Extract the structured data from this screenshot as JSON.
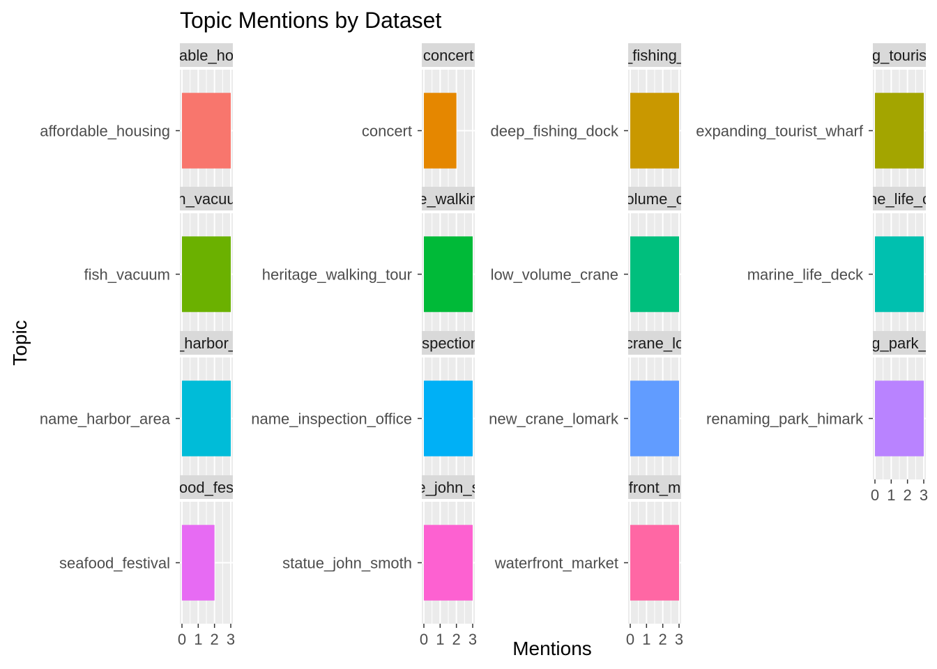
{
  "chart_data": {
    "type": "bar",
    "orientation": "horizontal",
    "facet_wrap": true,
    "title": "Topic Mentions by Dataset",
    "xlabel": "Mentions",
    "ylabel": "Topic",
    "xlim": [
      0,
      3
    ],
    "x_ticks": [
      "0",
      "1",
      "2",
      "3"
    ],
    "grid": true,
    "legend": "none",
    "panels": [
      {
        "strip": "able_ho",
        "topic": "affordable_housing",
        "value": 3,
        "color": "#F8766D"
      },
      {
        "strip": "concert",
        "topic": "concert",
        "value": 2,
        "color": "#E58700"
      },
      {
        "strip": "_fishing_",
        "topic": "deep_fishing_dock",
        "value": 3,
        "color": "#C99800"
      },
      {
        "strip": "g_touris",
        "topic": "expanding_tourist_wharf",
        "value": 3,
        "color": "#A3A500"
      },
      {
        "strip": "h_vacuu",
        "topic": "fish_vacuum",
        "value": 3,
        "color": "#6BB100"
      },
      {
        "strip": "e_walkin",
        "topic": "heritage_walking_tour",
        "value": 3,
        "color": "#00BA38"
      },
      {
        "strip": "olume_c",
        "topic": "low_volume_crane",
        "value": 3,
        "color": "#00BF7D"
      },
      {
        "strip": "ne_life_c",
        "topic": "marine_life_deck",
        "value": 3,
        "color": "#00C0AF"
      },
      {
        "strip": "_harbor_",
        "topic": "name_harbor_area",
        "value": 3,
        "color": "#00BCD8"
      },
      {
        "strip": "ıspection",
        "topic": "name_inspection_office",
        "value": 3,
        "color": "#00B0F6"
      },
      {
        "strip": "crane_lo",
        "topic": "new_crane_lomark",
        "value": 3,
        "color": "#619CFF"
      },
      {
        "strip": "g_park_",
        "topic": "renaming_park_himark",
        "value": 3,
        "color": "#B983FF"
      },
      {
        "strip": "ood_fes",
        "topic": "seafood_festival",
        "value": 2,
        "color": "#E76BF3"
      },
      {
        "strip": "e_john_s",
        "topic": "statue_john_smoth",
        "value": 3,
        "color": "#FD61D1"
      },
      {
        "strip": "front_m",
        "topic": "waterfront_market",
        "value": 3,
        "color": "#FF67A4"
      }
    ]
  }
}
